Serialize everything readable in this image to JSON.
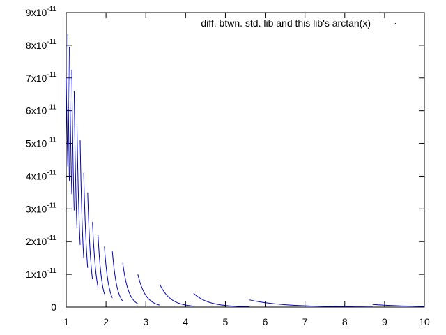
{
  "chart_data": {
    "type": "line",
    "title": "",
    "xlabel": "",
    "ylabel": "",
    "xlim": [
      1,
      10
    ],
    "ylim": [
      0,
      9e-11
    ],
    "x_ticks": [
      "1",
      "2",
      "3",
      "4",
      "5",
      "6",
      "7",
      "8",
      "9",
      "10"
    ],
    "y_ticks": [
      {
        "base": "0",
        "exp": ""
      },
      {
        "base": "1x10",
        "exp": "-11"
      },
      {
        "base": "2x10",
        "exp": "-11"
      },
      {
        "base": "3x10",
        "exp": "-11"
      },
      {
        "base": "4x10",
        "exp": "-11"
      },
      {
        "base": "5x10",
        "exp": "-11"
      },
      {
        "base": "6x10",
        "exp": "-11"
      },
      {
        "base": "7x10",
        "exp": "-11"
      },
      {
        "base": "8x10",
        "exp": "-11"
      },
      {
        "base": "9x10",
        "exp": "-11"
      }
    ],
    "grid": false,
    "legend_position": "top-right",
    "series": [
      {
        "name": "diff. btwn. std. lib and this lib's arctan(x)",
        "color": "#0000c0",
        "segments": [
          {
            "x_start": 1.0,
            "x_end": 1.04,
            "y_start": 7e-11,
            "y_end": 4.3e-11
          },
          {
            "x_start": 1.04,
            "x_end": 1.08,
            "y_start": 8.35e-11,
            "y_end": 3.85e-11
          },
          {
            "x_start": 1.08,
            "x_end": 1.14,
            "y_start": 7.95e-11,
            "y_end": 3.45e-11
          },
          {
            "x_start": 1.14,
            "x_end": 1.2,
            "y_start": 7.25e-11,
            "y_end": 2.95e-11
          },
          {
            "x_start": 1.2,
            "x_end": 1.27,
            "y_start": 6.6e-11,
            "y_end": 2.4e-11
          },
          {
            "x_start": 1.27,
            "x_end": 1.35,
            "y_start": 5.6e-11,
            "y_end": 1.9e-11
          },
          {
            "x_start": 1.35,
            "x_end": 1.44,
            "y_start": 5.1e-11,
            "y_end": 1.5e-11
          },
          {
            "x_start": 1.44,
            "x_end": 1.54,
            "y_start": 4.1e-11,
            "y_end": 1.2e-11
          },
          {
            "x_start": 1.54,
            "x_end": 1.66,
            "y_start": 3.5e-11,
            "y_end": 8.5e-12
          },
          {
            "x_start": 1.66,
            "x_end": 1.8,
            "y_start": 2.6e-11,
            "y_end": 6e-12
          },
          {
            "x_start": 1.8,
            "x_end": 1.96,
            "y_start": 2.2e-11,
            "y_end": 4e-12
          },
          {
            "x_start": 1.96,
            "x_end": 2.16,
            "y_start": 1.85e-11,
            "y_end": 2.8e-12
          },
          {
            "x_start": 2.16,
            "x_end": 2.42,
            "y_start": 1.7e-11,
            "y_end": 1.8e-12
          },
          {
            "x_start": 2.42,
            "x_end": 2.8,
            "y_start": 1.35e-11,
            "y_end": 1e-12
          },
          {
            "x_start": 2.8,
            "x_end": 3.35,
            "y_start": 1e-11,
            "y_end": 6e-13
          },
          {
            "x_start": 3.35,
            "x_end": 4.2,
            "y_start": 7e-12,
            "y_end": 3e-13
          },
          {
            "x_start": 4.2,
            "x_end": 5.6,
            "y_start": 4.2e-12,
            "y_end": 1e-13
          },
          {
            "x_start": 5.6,
            "x_end": 8.7,
            "y_start": 2.2e-12,
            "y_end": 5e-14
          },
          {
            "x_start": 8.7,
            "x_end": 10.0,
            "y_start": 8e-13,
            "y_end": 2e-13
          }
        ]
      }
    ]
  }
}
